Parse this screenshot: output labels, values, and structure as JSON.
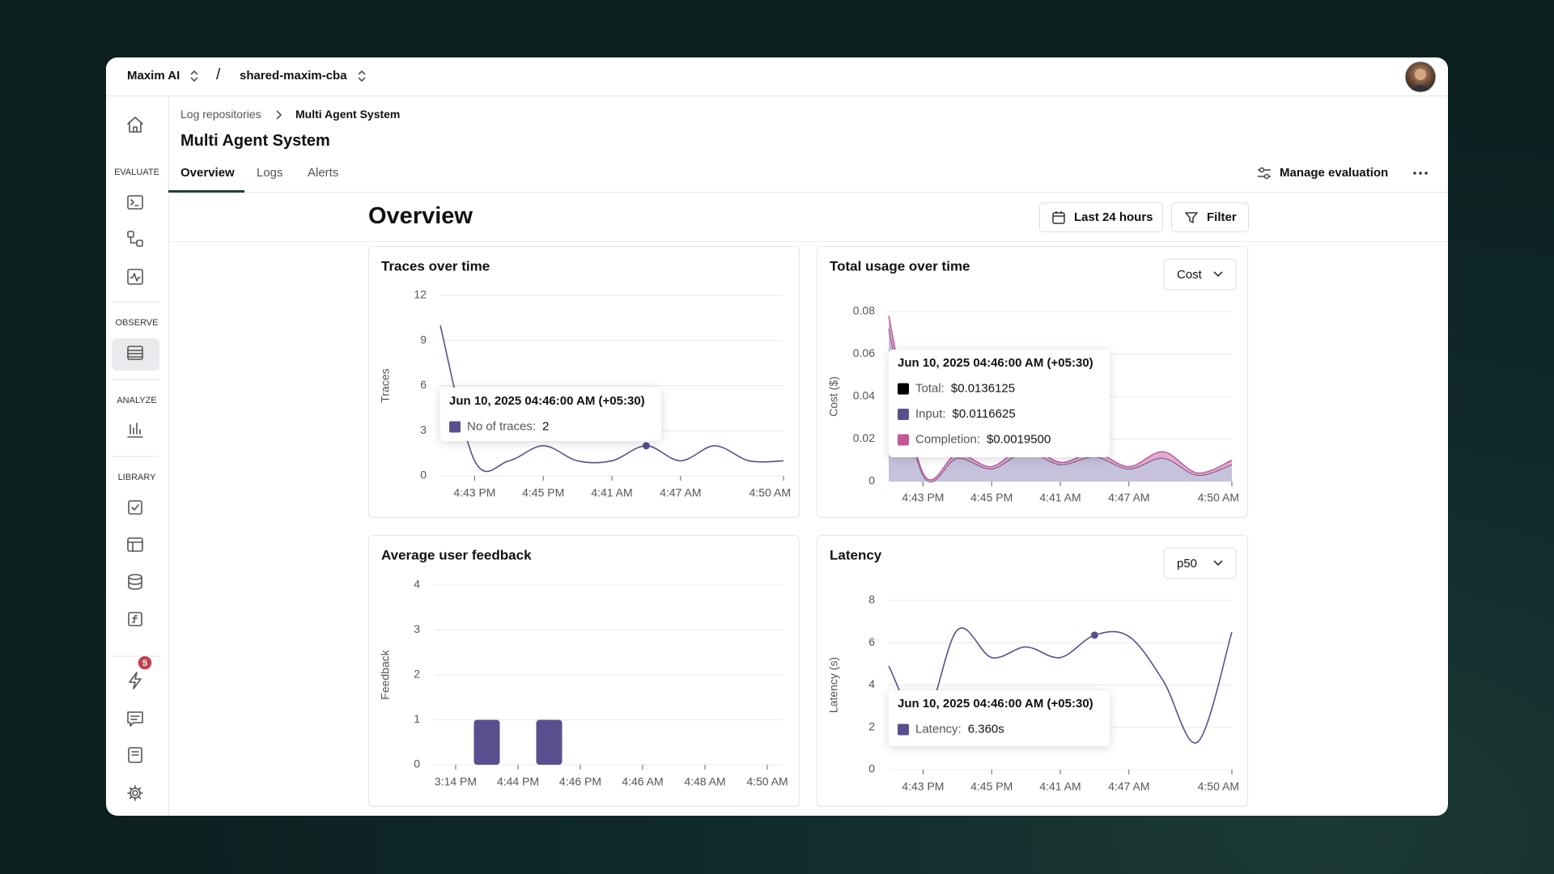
{
  "app": {
    "workspace": "Maxim AI",
    "separator": "/",
    "repository": "shared-maxim-cba"
  },
  "sidebar": {
    "sections": [
      "EVALUATE",
      "OBSERVE",
      "ANALYZE",
      "LIBRARY"
    ],
    "badge": 5
  },
  "breadcrumb": [
    "Log repositories",
    "Multi Agent System"
  ],
  "page_title": "Multi Agent System",
  "tabs": [
    "Overview",
    "Logs",
    "Alerts"
  ],
  "actions": {
    "manage": "Manage evaluation"
  },
  "overview": {
    "heading": "Overview",
    "range": "Last 24 hours",
    "filter": "Filter"
  },
  "chart_data": [
    {
      "type": "line",
      "title": "Traces over time",
      "y_label": "Traces",
      "categories": [
        null,
        "4:43 PM",
        null,
        "4:45 PM",
        null,
        "4:41 AM",
        null,
        "4:47 AM",
        null,
        null,
        "4:50 AM"
      ],
      "series": [
        {
          "color": "#5b4e8e",
          "values": [
            10,
            1,
            1,
            2,
            1,
            1,
            2,
            1,
            2,
            1,
            1
          ]
        }
      ],
      "ylim": [
        0,
        12
      ],
      "yticks": [
        0,
        3,
        6,
        9,
        12
      ],
      "grid": true,
      "hover_index": 6,
      "tooltip": {
        "title": "Jun 10, 2025 04:46:00 AM (+05:30)",
        "rows": [
          {
            "label": "No of traces:",
            "value": "2",
            "color": "#5b4e8e"
          }
        ]
      }
    },
    {
      "type": "area",
      "title": "Total usage over time",
      "selector": "Cost",
      "y_label": "Cost ($)",
      "categories": [
        null,
        "4:43 PM",
        null,
        "4:45 PM",
        null,
        "4:41 AM",
        null,
        "4:47 AM",
        null,
        null,
        "4:50 AM"
      ],
      "series": [
        {
          "color": "#5b4e8e",
          "fill": "#bdb7d6",
          "values": [
            0.072,
            0.003,
            0.011,
            0.006,
            0.014,
            0.008,
            0.0116625,
            0.006,
            0.011,
            0.003,
            0.008
          ]
        },
        {
          "color": "#c4579a",
          "fill": "#dd9fc4",
          "values": [
            0.006,
            0.001,
            0.002,
            0.001,
            0.003,
            0.001,
            0.00195,
            0.001,
            0.003,
            0.001,
            0.002
          ]
        }
      ],
      "ylim": [
        0,
        0.08
      ],
      "yticks": [
        0,
        0.02,
        0.04,
        0.06,
        0.08
      ],
      "grid": true,
      "hover_index": 6,
      "tooltip": {
        "title": "Jun 10, 2025 04:46:00 AM (+05:30)",
        "rows": [
          {
            "label": "Total:",
            "value": "$0.0136125",
            "color": "#000000"
          },
          {
            "label": "Input:",
            "value": "$0.0116625",
            "color": "#5b4e8e"
          },
          {
            "label": "Completion:",
            "value": "$0.0019500",
            "color": "#c4579a"
          }
        ]
      }
    },
    {
      "type": "bar",
      "title": "Average user feedback",
      "y_label": "Feedback",
      "categories": [
        "3:14 PM",
        null,
        "4:44 PM",
        null,
        "4:46 PM",
        null,
        "4:46 AM",
        null,
        "4:48 AM",
        null,
        "4:50 AM"
      ],
      "series": [
        {
          "color": "#5b4e8e",
          "values": [
            null,
            1,
            null,
            1,
            null,
            null,
            null,
            null,
            null,
            null,
            null
          ]
        }
      ],
      "ylim": [
        0,
        4
      ],
      "yticks": [
        0,
        1,
        2,
        3,
        4
      ],
      "grid": true
    },
    {
      "type": "line",
      "title": "Latency",
      "selector": "p50",
      "y_label": "Latency (s)",
      "categories": [
        null,
        "4:43 PM",
        null,
        "4:45 PM",
        null,
        "4:41 AM",
        null,
        "4:47 AM",
        null,
        null,
        "4:50 AM"
      ],
      "series": [
        {
          "color": "#5b4e8e",
          "values": [
            4.9,
            2.2,
            6.6,
            5.3,
            5.8,
            5.3,
            6.36,
            6.3,
            4.2,
            1.3,
            6.5
          ]
        }
      ],
      "ylim": [
        0,
        8
      ],
      "yticks": [
        0,
        2,
        4,
        6,
        8
      ],
      "grid": true,
      "hover_index": 6,
      "tooltip": {
        "title": "Jun 10, 2025 04:46:00 AM (+05:30)",
        "rows": [
          {
            "label": "Latency:",
            "value": "6.360s",
            "color": "#5b4e8e"
          }
        ]
      }
    }
  ]
}
